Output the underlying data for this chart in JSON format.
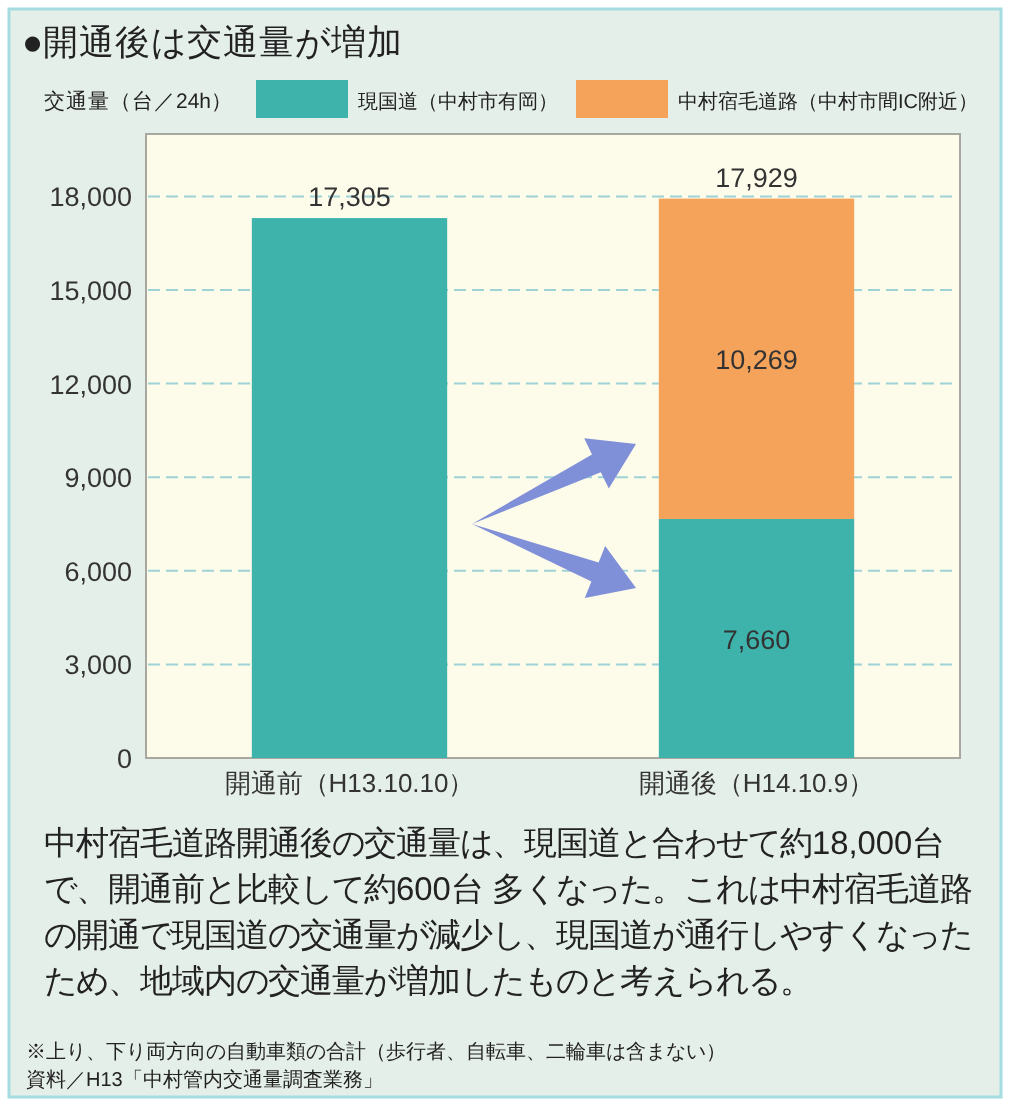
{
  "chart_data": {
    "type": "bar",
    "stacked": true,
    "title": "●開通後は交通量が増加",
    "ylabel": "交通量（台／24h）",
    "categories": [
      "開通前（H13.10.10）",
      "開通後（H14.10.9）"
    ],
    "series": [
      {
        "name": "現国道（中村市有岡）",
        "color": "#3db3ac",
        "values": [
          17305,
          7660
        ],
        "value_labels": [
          null,
          "7,660"
        ]
      },
      {
        "name": "中村宿毛道路（中村市間IC附近）",
        "color": "#f5a25a",
        "values": [
          null,
          10269
        ],
        "value_labels": [
          null,
          "10,269"
        ]
      }
    ],
    "totals": [
      "17,305",
      "17,929"
    ],
    "ylim": [
      0,
      20000
    ],
    "yticks": [
      0,
      {
        "value": 3000,
        "label": "3,000"
      },
      {
        "value": 6000,
        "label": "6,000"
      },
      {
        "value": 9000,
        "label": "9,000"
      },
      {
        "value": 12000,
        "label": "12,000"
      },
      {
        "value": 15000,
        "label": "15,000"
      },
      {
        "value": 18000,
        "label": "18,000"
      }
    ],
    "grid": "y",
    "legend": "top",
    "annotations": [
      "中村宿毛道路開通後の交通量は、現国道と合わせて約18,000台で、開通前と比較して約600台 多くなった。これは中村宿毛道路の開通で現国道の交通量が減少し、現国道が通行しやすくなったため、地域内の交通量が増加したものと考えられる。",
      "※上り、下り両方向の自動車類の合計（歩行者、自転車、二輪車は含まない）",
      "資料／H13「中村管内交通量調査業務」"
    ]
  }
}
